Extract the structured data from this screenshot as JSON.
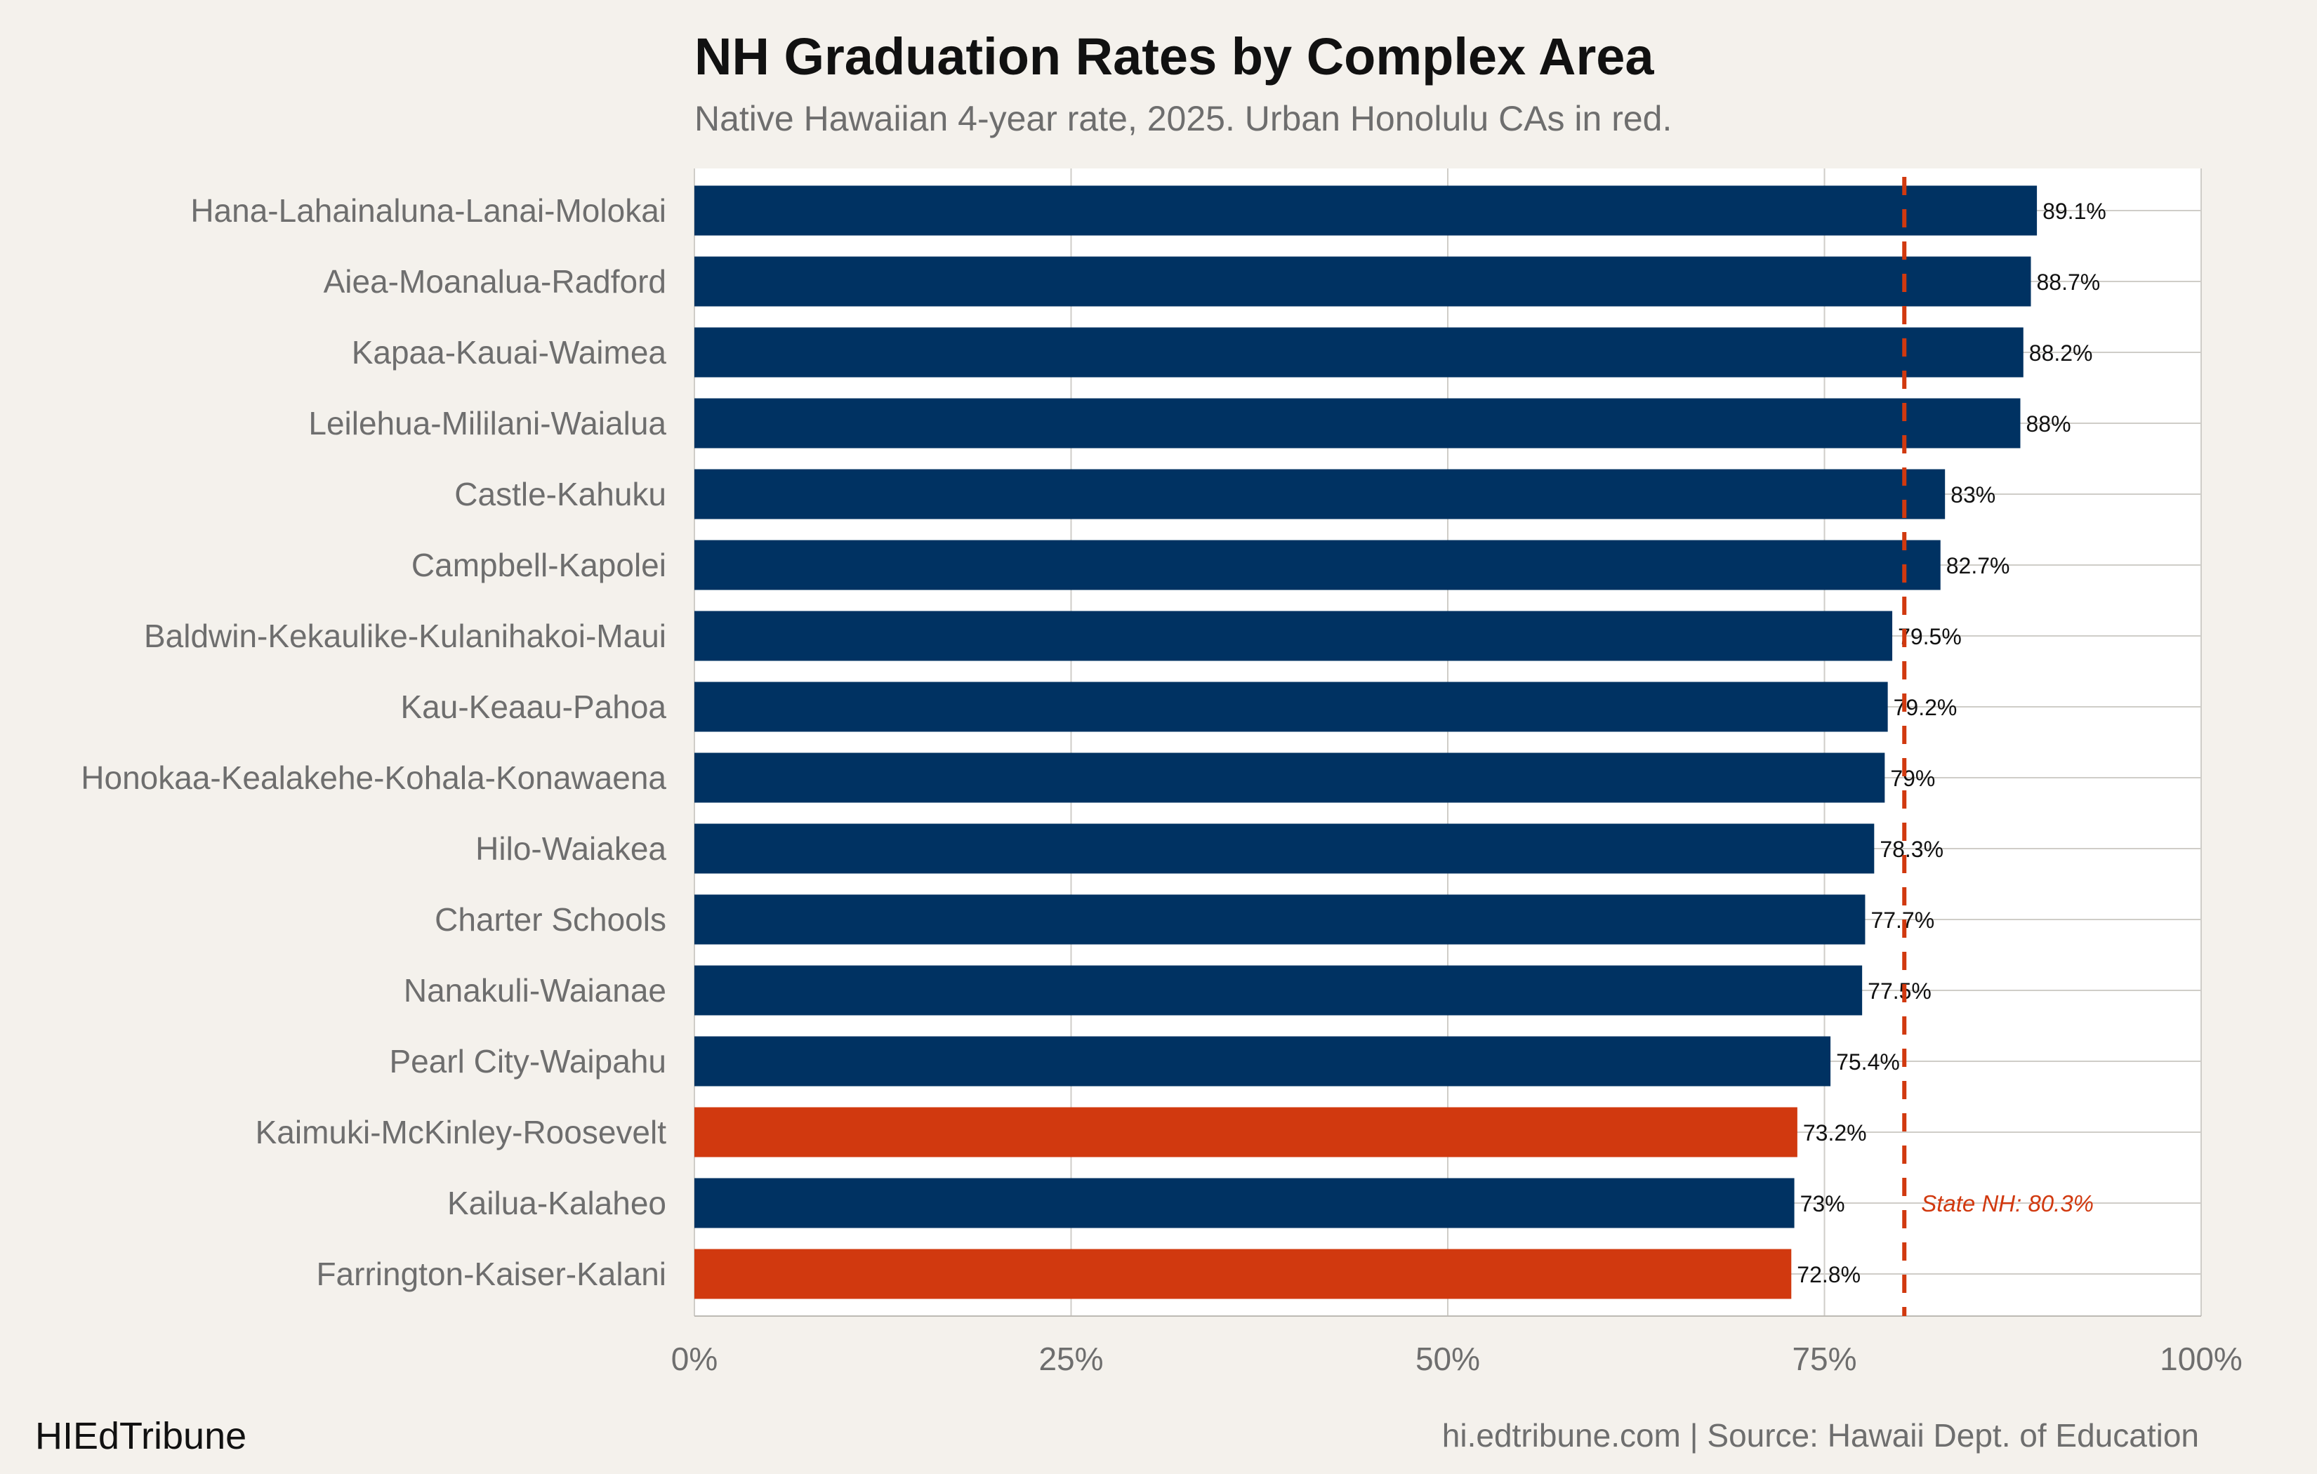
{
  "header": {
    "title": "NH Graduation Rates by Complex Area",
    "subtitle": "Native Hawaiian 4-year rate, 2025. Urban Honolulu CAs in red."
  },
  "footer": {
    "brand": "HIEdTribune",
    "source": "hi.edtribune.com | Source: Hawaii Dept. of Education"
  },
  "colors": {
    "default_bar": "#003262",
    "urban_bar": "#d1390f",
    "reference_line": "#d1390f",
    "background": "#f4f1ec",
    "plot_background": "#ffffff",
    "grid": "#cfcdc8"
  },
  "chart_data": {
    "type": "bar",
    "orientation": "horizontal",
    "title": "NH Graduation Rates by Complex Area",
    "subtitle": "Native Hawaiian 4-year rate, 2025. Urban Honolulu CAs in red.",
    "categories": [
      "Hana-Lahainaluna-Lanai-Molokai",
      "Aiea-Moanalua-Radford",
      "Kapaa-Kauai-Waimea",
      "Leilehua-Mililani-Waialua",
      "Castle-Kahuku",
      "Campbell-Kapolei",
      "Baldwin-Kekaulike-Kulanihakoi-Maui",
      "Kau-Keaau-Pahoa",
      "Honokaa-Kealakehe-Kohala-Konawaena",
      "Hilo-Waiakea",
      "Charter Schools",
      "Nanakuli-Waianae",
      "Pearl City-Waipahu",
      "Kaimuki-McKinley-Roosevelt",
      "Kailua-Kalaheo",
      "Farrington-Kaiser-Kalani"
    ],
    "values": [
      89.1,
      88.7,
      88.2,
      88,
      83,
      82.7,
      79.5,
      79.2,
      79,
      78.3,
      77.7,
      77.5,
      75.4,
      73.2,
      73,
      72.8
    ],
    "value_labels": [
      "89.1%",
      "88.7%",
      "88.2%",
      "88%",
      "83%",
      "82.7%",
      "79.5%",
      "79.2%",
      "79%",
      "78.3%",
      "77.7%",
      "77.5%",
      "75.4%",
      "73.2%",
      "73%",
      "72.8%"
    ],
    "urban_honolulu": [
      false,
      false,
      false,
      false,
      false,
      false,
      false,
      false,
      false,
      false,
      false,
      false,
      false,
      true,
      false,
      true
    ],
    "xlim": [
      0,
      100
    ],
    "x_ticks": [
      0,
      25,
      50,
      75,
      100
    ],
    "x_tick_labels": [
      "0%",
      "25%",
      "50%",
      "75%",
      "100%"
    ],
    "reference_line": {
      "value": 80.3,
      "label": "State NH: 80.3%"
    },
    "grid": true,
    "legend": "none"
  }
}
